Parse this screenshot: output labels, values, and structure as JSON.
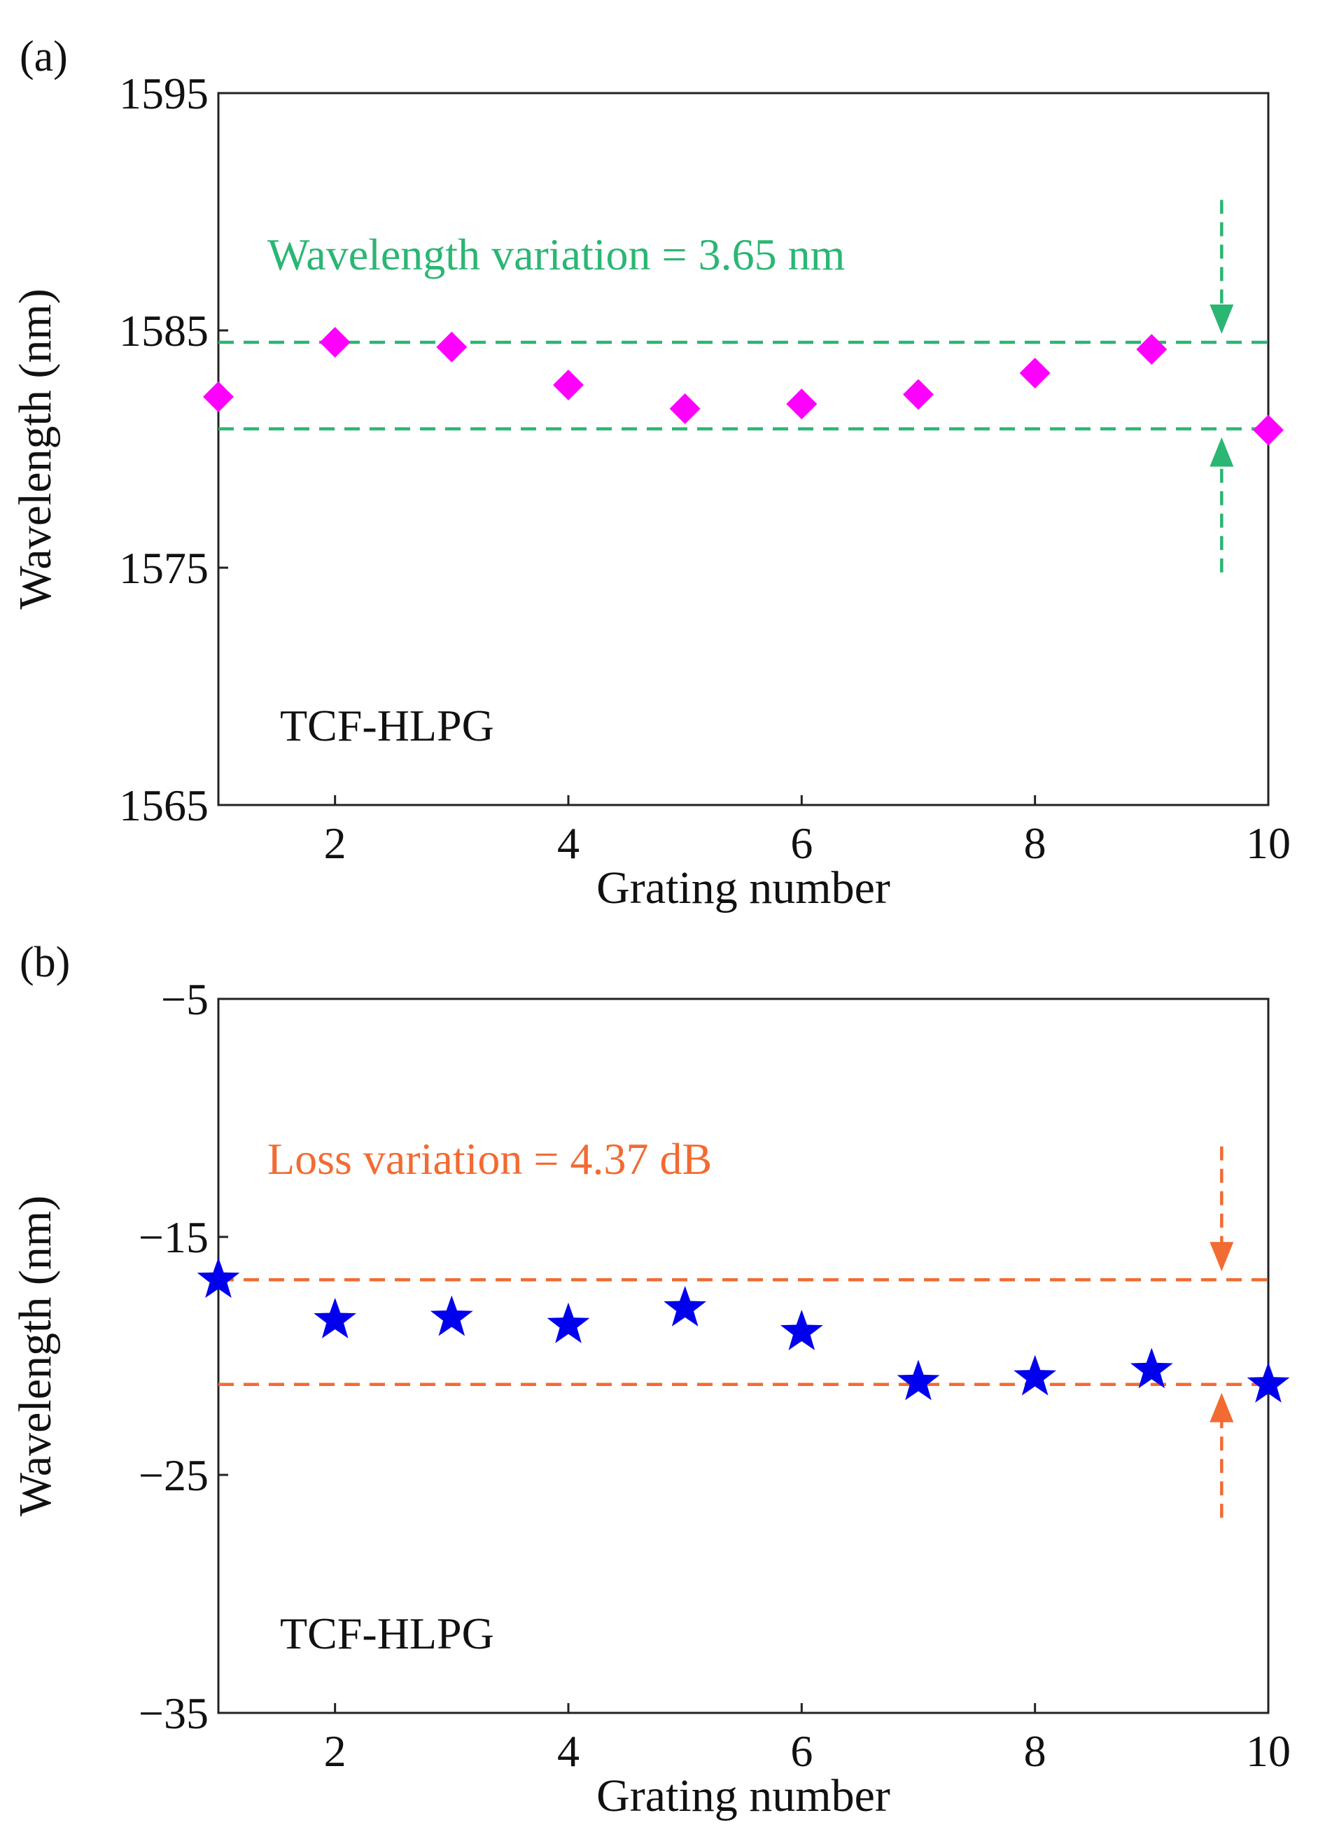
{
  "chart_data": [
    {
      "type": "scatter",
      "panel_label": "(a)",
      "title": "",
      "xlabel": "Grating number",
      "ylabel": "Wavelength (nm)",
      "xlim": [
        1,
        10
      ],
      "ylim": [
        1565,
        1595
      ],
      "x_ticks": [
        2,
        4,
        6,
        8,
        10
      ],
      "y_ticks": [
        1565,
        1575,
        1585,
        1595
      ],
      "x_tick_labels": [
        "2",
        "4",
        "6",
        "8",
        "10"
      ],
      "y_tick_labels": [
        "1565",
        "1575",
        "1585",
        "1595"
      ],
      "grid": false,
      "series": [
        {
          "name": "TCF-HLPG wavelength",
          "marker": "diamond",
          "color": "#ff00ff",
          "x": [
            1,
            2,
            3,
            4,
            5,
            6,
            7,
            8,
            9,
            10
          ],
          "values": [
            1582.2,
            1584.5,
            1584.3,
            1582.7,
            1581.7,
            1581.9,
            1582.3,
            1583.2,
            1584.2,
            1580.8
          ]
        }
      ],
      "reference_lines": {
        "color": "#2bb673",
        "values": [
          1584.5,
          1580.85
        ]
      },
      "annotation_text": "Wavelength variation = 3.65 nm",
      "annotation_color": "#2bb673",
      "arrow_x": 9.6,
      "arrow_from_top": 1590.5,
      "arrow_from_bottom": 1574.8,
      "sample_label": "TCF-HLPG"
    },
    {
      "type": "scatter",
      "panel_label": "(b)",
      "title": "",
      "xlabel": "Grating number",
      "ylabel": "Wavelength (nm)",
      "xlim": [
        1,
        10
      ],
      "ylim": [
        -35,
        -5
      ],
      "x_ticks": [
        2,
        4,
        6,
        8,
        10
      ],
      "y_ticks": [
        -35,
        -25,
        -15,
        -5
      ],
      "x_tick_labels": [
        "2",
        "4",
        "6",
        "8",
        "10"
      ],
      "y_tick_labels": [
        "−35",
        "−25",
        "−15",
        "−5"
      ],
      "grid": false,
      "series": [
        {
          "name": "TCF-HLPG loss",
          "marker": "star",
          "color": "#0000ee",
          "x": [
            1,
            2,
            3,
            4,
            5,
            6,
            7,
            8,
            9,
            10
          ],
          "values": [
            -16.8,
            -18.5,
            -18.4,
            -18.7,
            -18.0,
            -19.0,
            -21.1,
            -20.9,
            -20.6,
            -21.2
          ]
        }
      ],
      "reference_lines": {
        "color": "#f26b32",
        "values": [
          -16.8,
          -21.2
        ]
      },
      "annotation_text": "Loss variation = 4.37 dB",
      "annotation_color": "#f26b32",
      "arrow_x": 9.6,
      "arrow_from_top": -11.2,
      "arrow_from_bottom": -26.8,
      "sample_label": "TCF-HLPG"
    }
  ]
}
